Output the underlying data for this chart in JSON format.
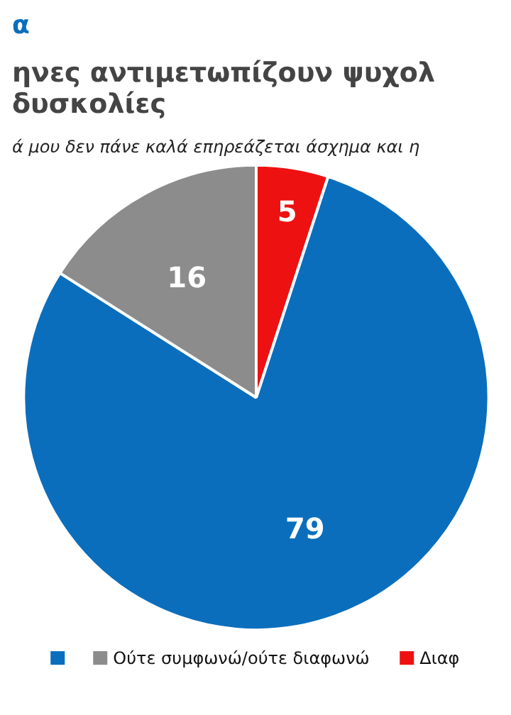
{
  "chart_data": {
    "type": "pie",
    "title": "ηνες αντιμετωπίζουν ψυχολ\nδυσκολίες",
    "subtitle": "ά μου δεν πάνε καλά επηρεάζεται άσχημα και η",
    "annotations": [
      "α"
    ],
    "categories": [
      null,
      "Ούτε συμφωνώ/ούτε διαφωνώ",
      "Διαφ"
    ],
    "values": [
      79,
      16,
      5
    ],
    "colors": [
      "#0a6ebd",
      "#8c8c8c",
      "#ee1111"
    ],
    "data_labels": true,
    "legend": "bottom"
  }
}
